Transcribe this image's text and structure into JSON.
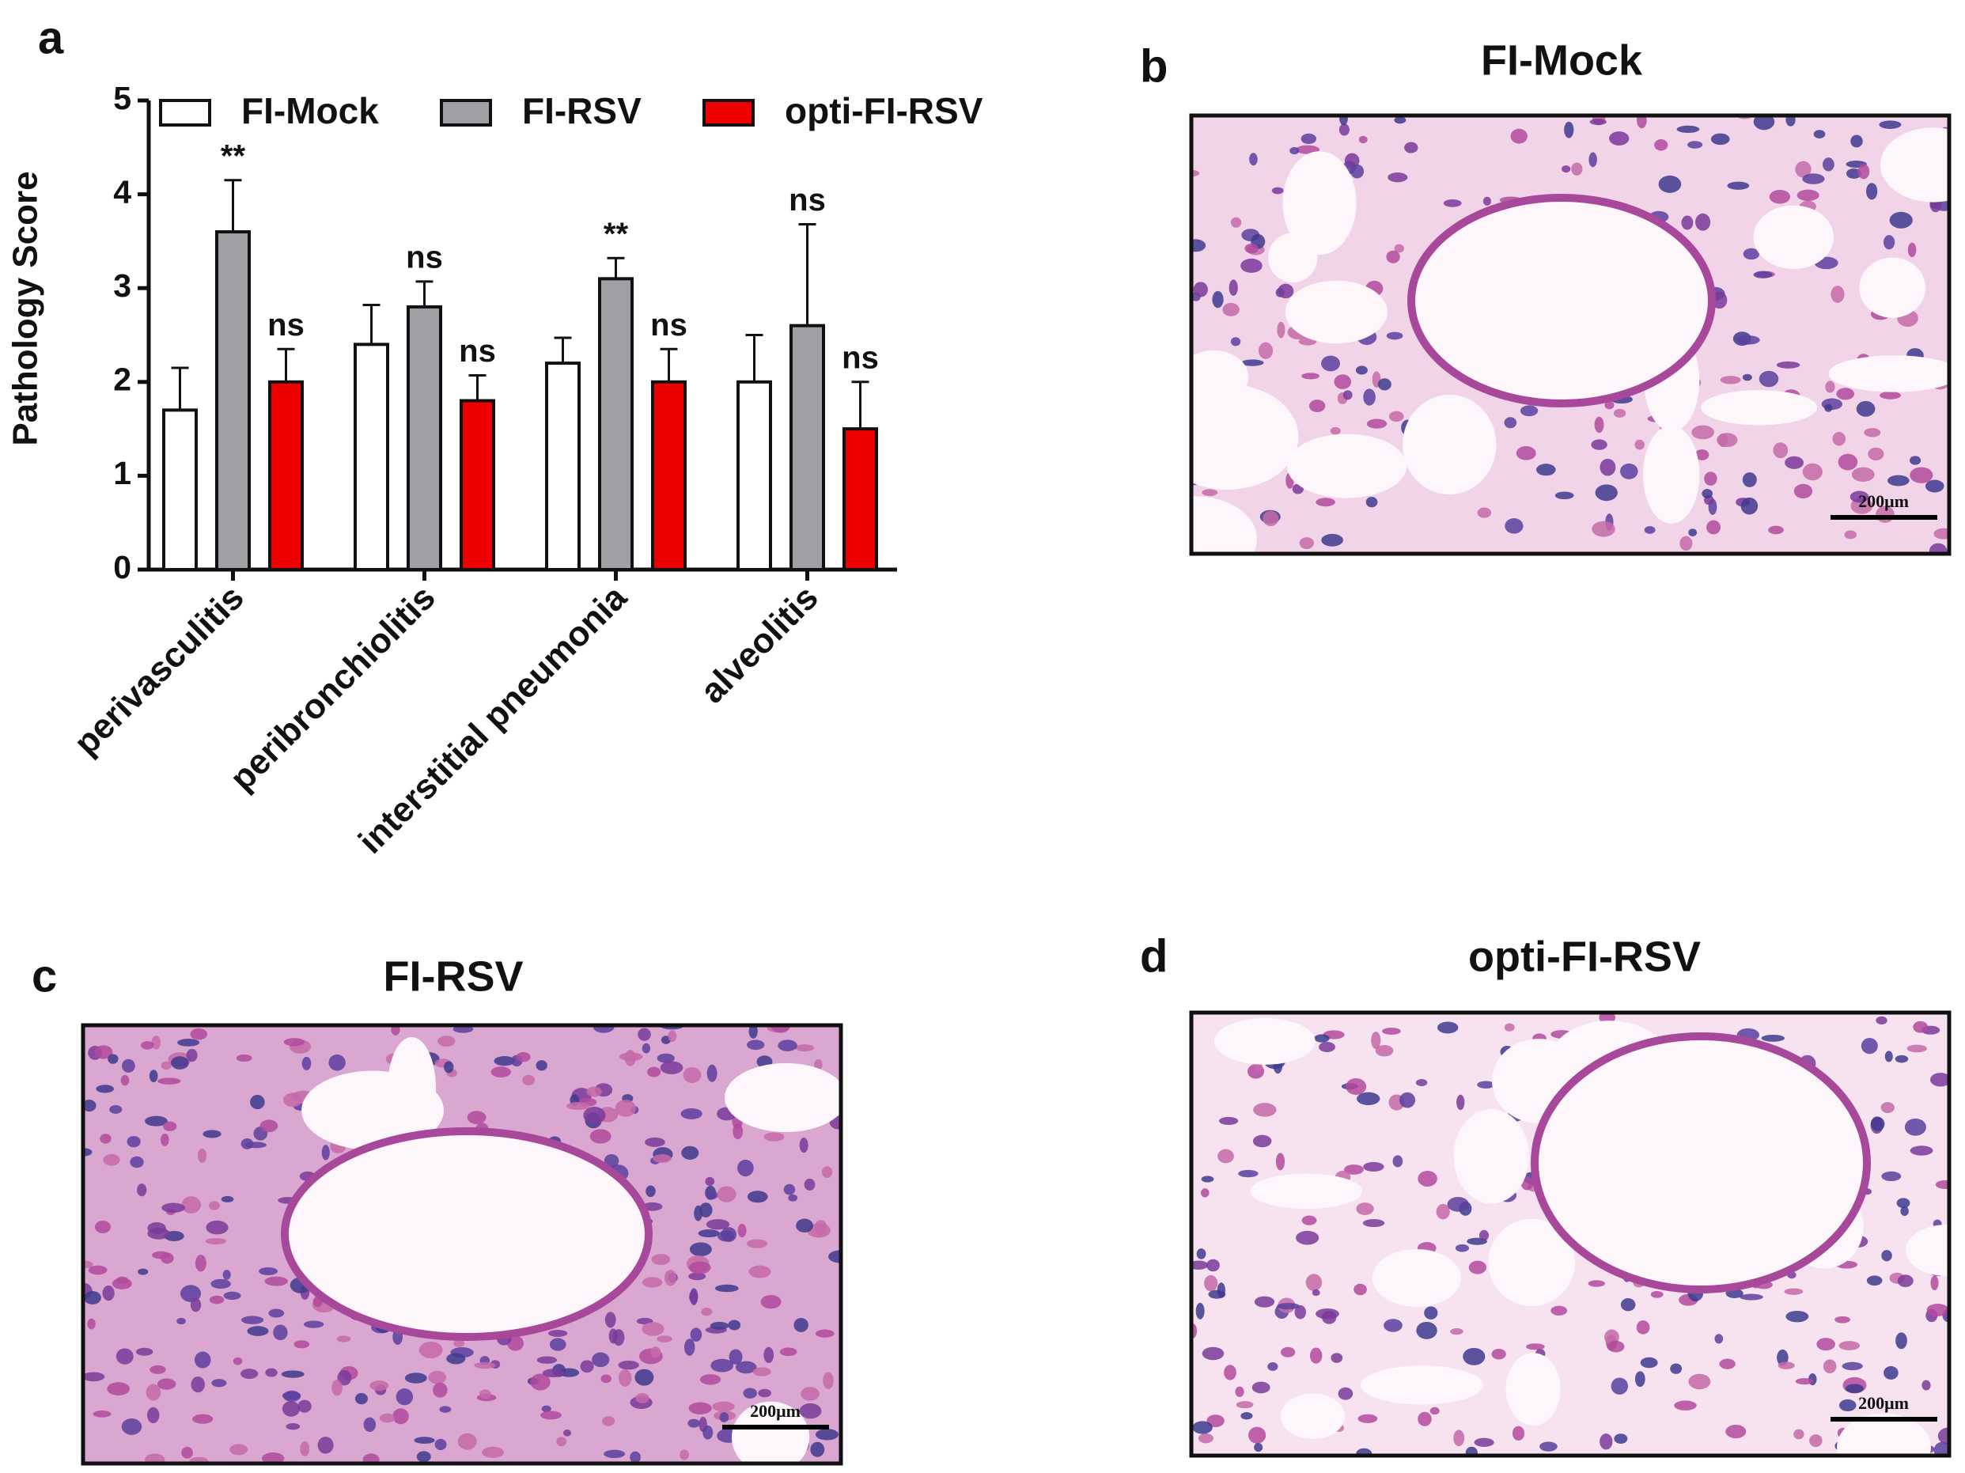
{
  "chart_data": {
    "type": "bar",
    "categories": [
      "perivasculitis",
      "peribronchiolitis",
      "interstitial pneumonia",
      "alveolitis"
    ],
    "series": [
      {
        "name": "FI-Mock",
        "color": "#ffffff",
        "values": [
          1.7,
          2.4,
          2.2,
          2.0
        ],
        "errors": [
          0.45,
          0.42,
          0.27,
          0.5
        ]
      },
      {
        "name": "FI-RSV",
        "color": "#a0a0a4",
        "values": [
          3.6,
          2.8,
          3.1,
          2.6
        ],
        "errors": [
          0.55,
          0.27,
          0.22,
          1.08
        ],
        "significance": [
          "**",
          "ns",
          "**",
          "ns"
        ]
      },
      {
        "name": "opti-FI-RSV",
        "color": "#ee0000",
        "values": [
          2.0,
          1.8,
          2.0,
          1.5
        ],
        "errors": [
          0.35,
          0.27,
          0.35,
          0.5
        ],
        "significance": [
          "ns",
          "ns",
          "ns",
          "ns"
        ]
      }
    ],
    "ylabel": "Pathology Score",
    "ylim": [
      0,
      5
    ],
    "yticks": [
      0,
      1,
      2,
      3,
      4,
      5
    ],
    "legend": "top"
  },
  "panel_labels": [
    "a",
    "b",
    "c",
    "d"
  ],
  "images": [
    {
      "title": "FI-Mock",
      "scale_bar": "200μm"
    },
    {
      "title": "FI-RSV",
      "scale_bar": "200μm"
    },
    {
      "title": "opti-FI-RSV",
      "scale_bar": "200μm"
    }
  ]
}
